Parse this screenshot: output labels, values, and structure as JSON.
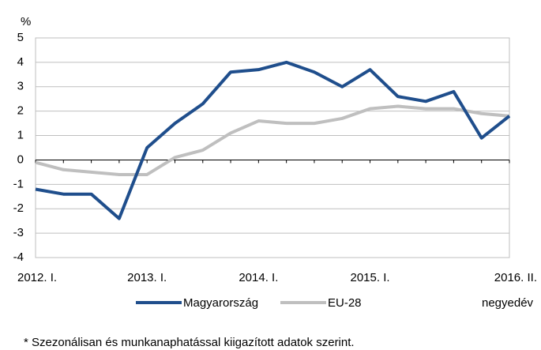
{
  "chart_data": {
    "type": "line",
    "y_unit": "%",
    "x_unit": "negyedév",
    "categories": [
      "2012. I.",
      null,
      null,
      null,
      "2013. I.",
      null,
      null,
      null,
      "2014. I.",
      null,
      null,
      null,
      "2015. I.",
      null,
      null,
      null,
      null,
      "2016. II."
    ],
    "series": [
      {
        "name": "Magyarország",
        "color": "#1f4e8c",
        "values": [
          -1.2,
          -1.4,
          -1.4,
          -2.4,
          0.5,
          1.5,
          2.3,
          3.6,
          3.7,
          4.0,
          3.6,
          3.0,
          3.7,
          2.6,
          2.4,
          2.8,
          0.9,
          1.8
        ]
      },
      {
        "name": "EU-28",
        "color": "#bfbfbf",
        "values": [
          -0.1,
          -0.4,
          -0.5,
          -0.6,
          -0.6,
          0.1,
          0.4,
          1.1,
          1.6,
          1.5,
          1.5,
          1.7,
          2.1,
          2.2,
          2.1,
          2.1,
          1.9,
          1.8
        ]
      }
    ],
    "ylim": [
      -4,
      5
    ],
    "yticks": [
      -4,
      -3,
      -2,
      -1,
      0,
      1,
      2,
      3,
      4,
      5
    ],
    "grid": true,
    "footnote": "* Szezonálisan és munkanaphatással kiigazított adatok szerint."
  }
}
